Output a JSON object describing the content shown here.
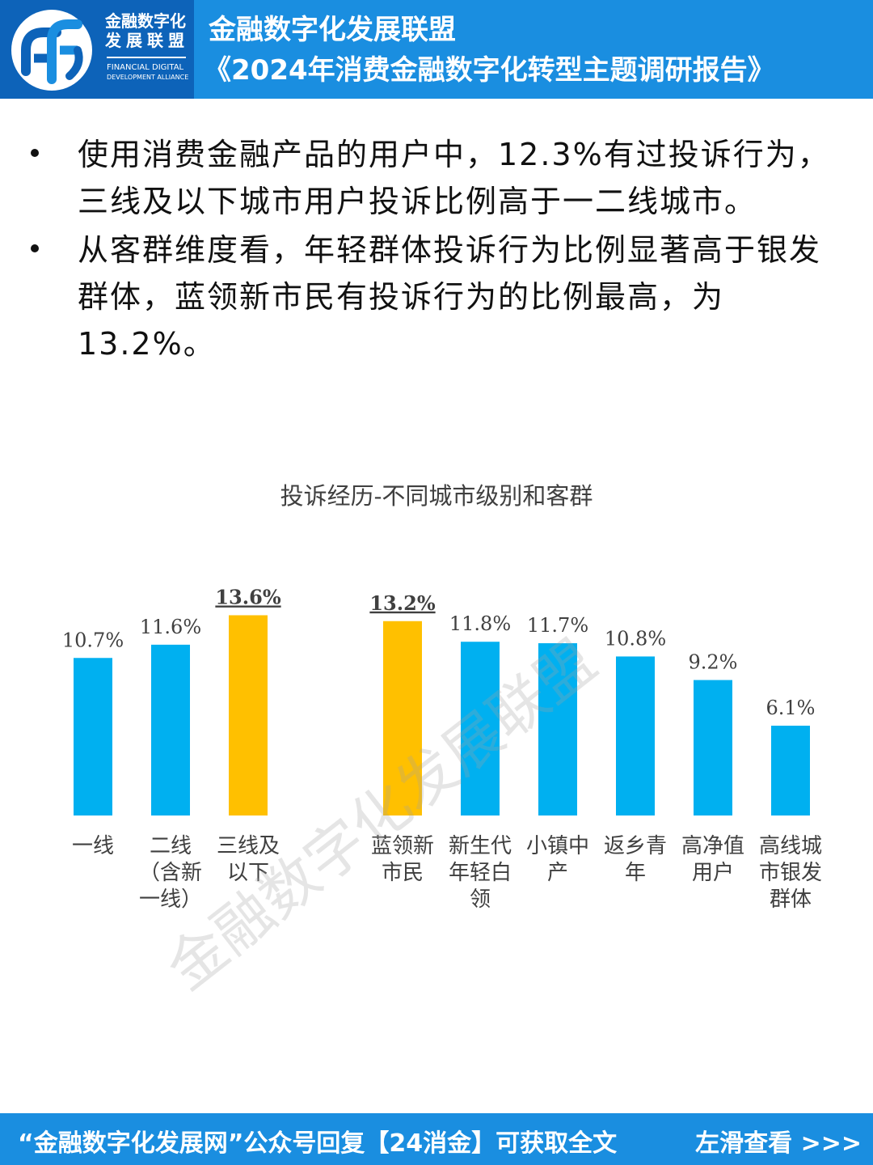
{
  "header": {
    "logo_cn_line1": "金融数字化",
    "logo_cn_line2": "发展联盟",
    "logo_en_line1": "FINANCIAL DIGITAL",
    "logo_en_line2": "DEVELOPMENT ALLIANCE",
    "title": "金融数字化发展联盟",
    "subtitle": "《2024年消费金融数字化转型主题调研报告》",
    "brand_color": "#1a8ee0",
    "logo_bg_color": "#0d63b9"
  },
  "bullets": [
    "使用消费金融产品的用户中，12.3%有过投诉行为，三线及以下城市用户投诉比例高于一二线城市。",
    "从客群维度看，年轻群体投诉行为比例显著高于银发群体，蓝领新市民有投诉行为的比例最高，为13.2%。"
  ],
  "watermark": "金融数字化发展联盟",
  "chart_data": {
    "type": "bar",
    "title": "投诉经历-不同城市级别和客群",
    "xlabel": "",
    "ylabel": "",
    "ylim": [
      0,
      14
    ],
    "grid": false,
    "legend": "none",
    "groups": [
      {
        "categories": [
          [
            "一线"
          ],
          [
            "二线",
            "（含新",
            "一线）"
          ],
          [
            "三线及",
            "以下"
          ]
        ],
        "values": [
          10.7,
          11.6,
          13.6
        ],
        "labels": [
          "10.7%",
          "11.6%",
          "13.6%"
        ],
        "highlight": [
          false,
          false,
          true
        ]
      },
      {
        "categories": [
          [
            "蓝领新",
            "市民"
          ],
          [
            "新生代",
            "年轻白",
            "领"
          ],
          [
            "小镇中",
            "产"
          ],
          [
            "返乡青",
            "年"
          ],
          [
            "高净值",
            "用户"
          ],
          [
            "高线城",
            "市银发",
            "群体"
          ]
        ],
        "values": [
          13.2,
          11.8,
          11.7,
          10.8,
          9.2,
          6.1
        ],
        "labels": [
          "13.2%",
          "11.8%",
          "11.7%",
          "10.8%",
          "9.2%",
          "6.1%"
        ],
        "highlight": [
          true,
          false,
          false,
          false,
          false,
          false
        ]
      }
    ],
    "colors": {
      "normal": "#00b0f0",
      "highlight": "#ffc000"
    }
  },
  "footer": {
    "left": "“金融数字化发展网”公众号回复【24消金】可获取全文",
    "right": "左滑查看 >>>"
  }
}
